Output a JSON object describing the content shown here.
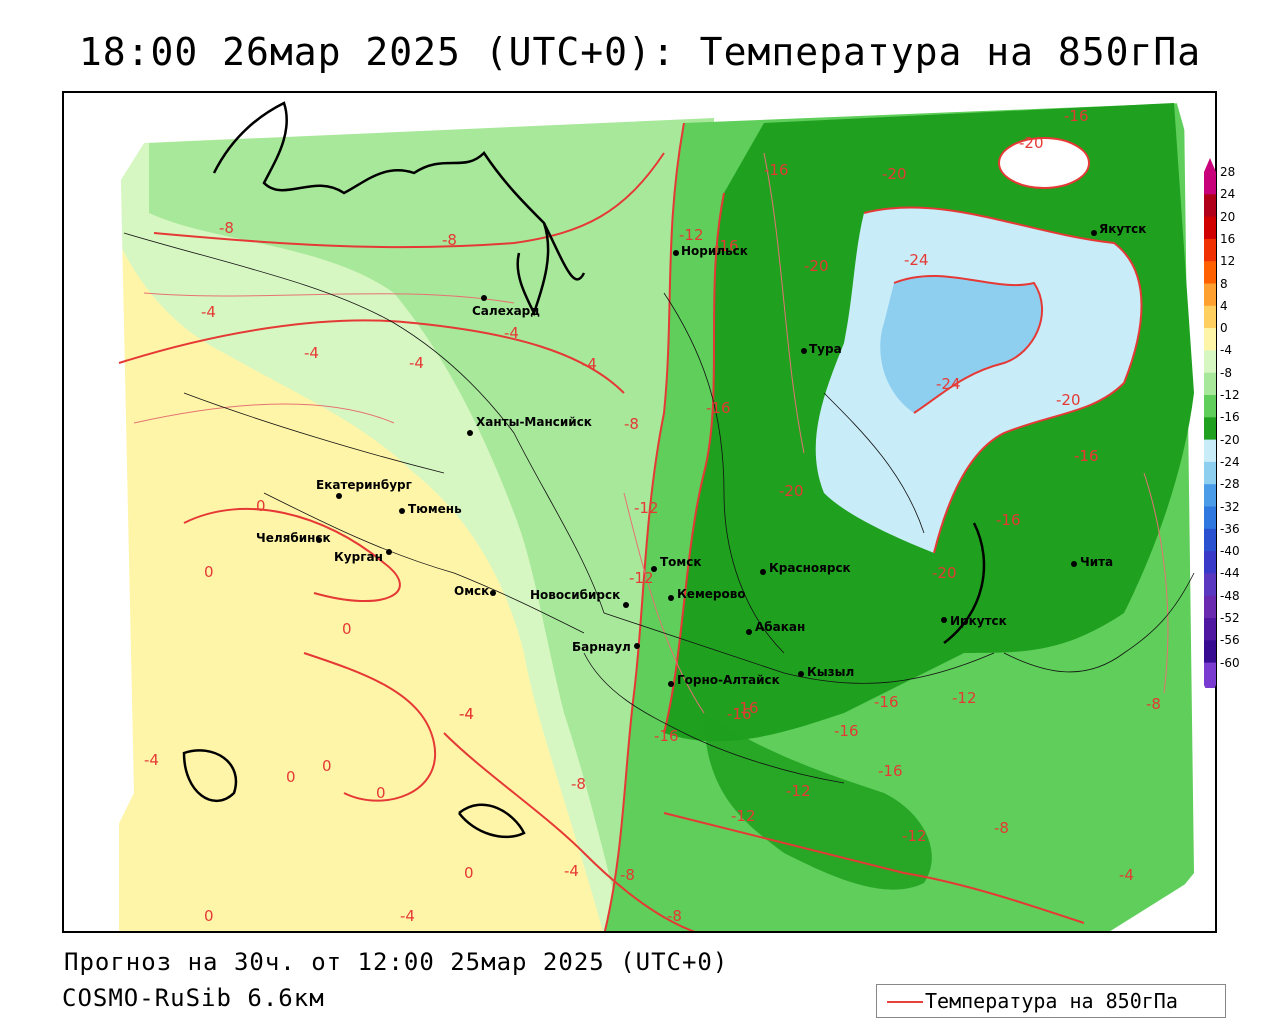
{
  "title": "18:00 26мар 2025 (UTC+0): Температура на 850гПа",
  "footer": {
    "forecast": "Прогноз на 30ч. от 12:00 25мар 2025 (UTC+0)",
    "model": "COSMO-RuSib 6.6км"
  },
  "legend": {
    "label": "Температура на 850гПа",
    "line_color": "#e8413a"
  },
  "color_scale": [
    {
      "label": "28",
      "color": "#c8007a"
    },
    {
      "label": "24",
      "color": "#b0001a"
    },
    {
      "label": "20",
      "color": "#d00000"
    },
    {
      "label": "16",
      "color": "#f03000"
    },
    {
      "label": "12",
      "color": "#ff6000"
    },
    {
      "label": "8",
      "color": "#ffa030"
    },
    {
      "label": "4",
      "color": "#ffd060"
    },
    {
      "label": "0",
      "color": "#fff5a8"
    },
    {
      "label": "-4",
      "color": "#d7f7c2"
    },
    {
      "label": "-8",
      "color": "#a8e89a"
    },
    {
      "label": "-12",
      "color": "#5fce5a"
    },
    {
      "label": "-16",
      "color": "#1fa01f"
    },
    {
      "label": "-20",
      "color": "#c8ecf8"
    },
    {
      "label": "-24",
      "color": "#8ecff0"
    },
    {
      "label": "-28",
      "color": "#4a9be8"
    },
    {
      "label": "-32",
      "color": "#2e78e0"
    },
    {
      "label": "-36",
      "color": "#2a52d0"
    },
    {
      "label": "-40",
      "color": "#3a3ac8"
    },
    {
      "label": "-44",
      "color": "#5a38c0"
    },
    {
      "label": "-48",
      "color": "#6a2ab0"
    },
    {
      "label": "-52",
      "color": "#5018a0"
    },
    {
      "label": "-56",
      "color": "#380c90"
    },
    {
      "label": "-60",
      "color": "#7a3cd0"
    }
  ],
  "cities": [
    {
      "name": "Норильск"
    },
    {
      "name": "Якутск"
    },
    {
      "name": "Салехард"
    },
    {
      "name": "Тура"
    },
    {
      "name": "Ханты-Мансийск"
    },
    {
      "name": "Екатеринбург"
    },
    {
      "name": "Тюмень"
    },
    {
      "name": "Челябинск"
    },
    {
      "name": "Курган"
    },
    {
      "name": "Омск"
    },
    {
      "name": "Новосибирск"
    },
    {
      "name": "Томск"
    },
    {
      "name": "Кемерово"
    },
    {
      "name": "Красноярск"
    },
    {
      "name": "Абакан"
    },
    {
      "name": "Барнаул"
    },
    {
      "name": "Горно-Алтайск"
    },
    {
      "name": "Кызыл"
    },
    {
      "name": "Иркутск"
    },
    {
      "name": "Чита"
    }
  ],
  "isotherm_labels": [
    "-16",
    "-20",
    "-16",
    "-12",
    "-16",
    "-20",
    "-24",
    "-24",
    "-20",
    "-16",
    "-16",
    "-20",
    "-20",
    "-16",
    "-12",
    "-8",
    "-8",
    "-4",
    "-4",
    "-4",
    "-4",
    "-4",
    "-8",
    "-16",
    "-12",
    "0",
    "0",
    "0",
    "-4",
    "-4",
    "-8",
    "-12",
    "-16",
    "-16",
    "-16",
    "-16",
    "-16",
    "-12",
    "-12",
    "-12",
    "-8",
    "-8",
    "-4",
    "0",
    "0",
    "0",
    "0",
    "-4",
    "-8",
    "-8",
    "-4",
    "0",
    "-4",
    "-16",
    "-20"
  ]
}
